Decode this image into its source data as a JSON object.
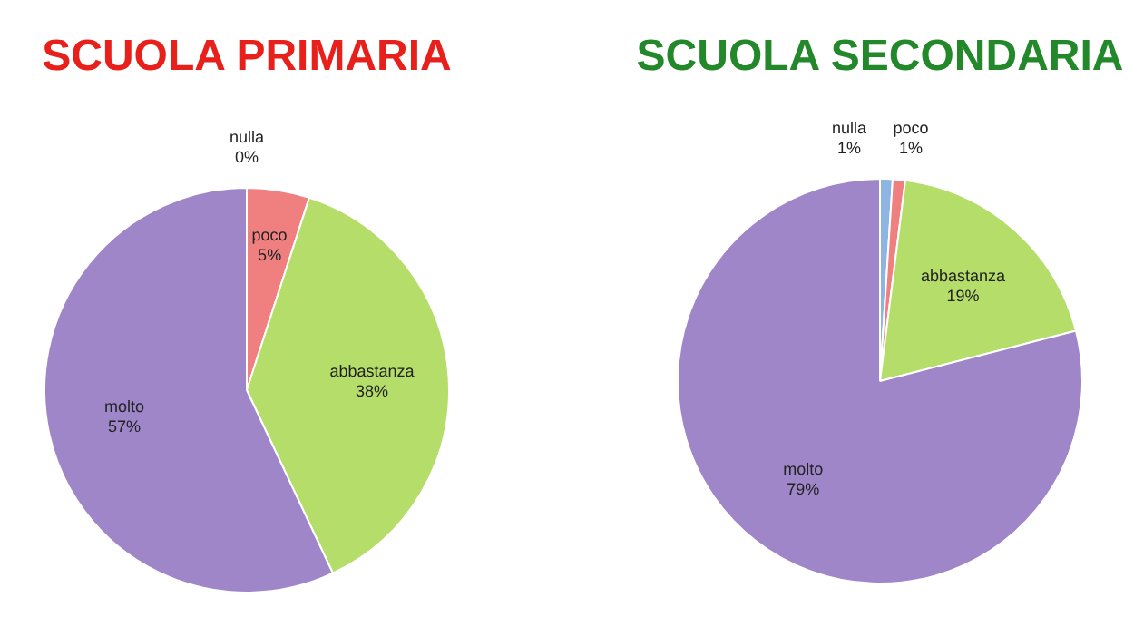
{
  "chart_data": [
    {
      "type": "pie",
      "title": "SCUOLA PRIMARIA",
      "categories": [
        "nulla",
        "poco",
        "abbastanza",
        "molto"
      ],
      "values": [
        0,
        5,
        38,
        57
      ],
      "value_labels": [
        "0%",
        "5%",
        "38%",
        "57%"
      ],
      "colors": [
        "#8eb4e3",
        "#f08080",
        "#b5dd6a",
        "#9f86c9"
      ],
      "legend": false
    },
    {
      "type": "pie",
      "title": "SCUOLA SECONDARIA",
      "categories": [
        "nulla",
        "poco",
        "abbastanza",
        "molto"
      ],
      "values": [
        1,
        1,
        19,
        79
      ],
      "value_labels": [
        "1%",
        "1%",
        "19%",
        "79%"
      ],
      "colors": [
        "#8eb4e3",
        "#f08080",
        "#b5dd6a",
        "#9f86c9"
      ],
      "legend": false
    }
  ]
}
